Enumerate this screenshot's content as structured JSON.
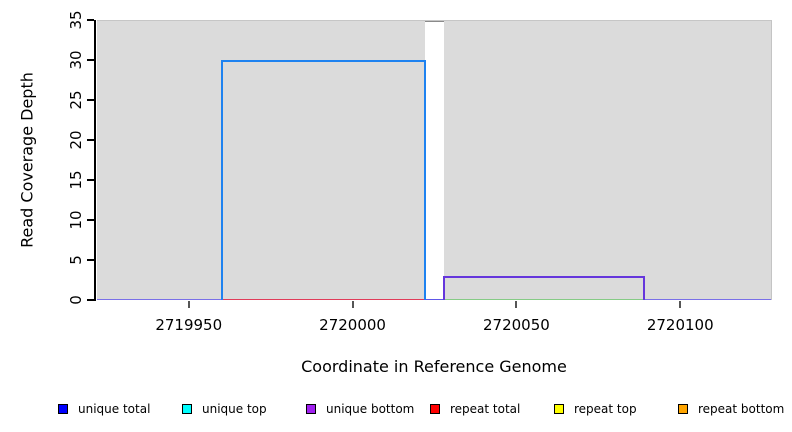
{
  "chart_data": {
    "type": "area",
    "title": "",
    "xlabel": "Coordinate in Reference Genome",
    "ylabel": "Read Coverage Depth",
    "xlim": [
      2719922,
      2720128
    ],
    "ylim": [
      0,
      35
    ],
    "x_ticks": [
      2719950,
      2720000,
      2720050,
      2720100
    ],
    "y_ticks": [
      0,
      5,
      10,
      15,
      20,
      25,
      30,
      35
    ],
    "grid": false,
    "plot_background": "#DBDBDB",
    "gap": {
      "x_start": 2720022,
      "x_end": 2720028,
      "cap_color": "#8A8A8A"
    },
    "steps": [
      {
        "name": "unique total block",
        "x_start": 2719960,
        "x_end": 2720022,
        "depth": 30,
        "line_color": "#1E82F0"
      },
      {
        "name": "unique bottom block",
        "x_start": 2720028,
        "x_end": 2720089,
        "depth": 3,
        "line_color": "#6536DC"
      }
    ],
    "baselines": [
      {
        "x_start": 2719922,
        "x_end": 2719960,
        "depth": 0,
        "line_color": "#7A70E8"
      },
      {
        "x_start": 2719960,
        "x_end": 2720022,
        "depth": 0,
        "line_color": "#E03C5A"
      },
      {
        "x_start": 2720022,
        "x_end": 2720028,
        "depth": 0,
        "line_color": "#6057E8"
      },
      {
        "x_start": 2720028,
        "x_end": 2720089,
        "depth": 0,
        "line_color": "#86CB86"
      },
      {
        "x_start": 2720089,
        "x_end": 2720128,
        "depth": 0,
        "line_color": "#7A70E8"
      }
    ],
    "legend_position": "bottom",
    "legend": [
      {
        "label": "unique total",
        "color": "#0000FF"
      },
      {
        "label": "unique top",
        "color": "#00FFFF"
      },
      {
        "label": "unique bottom",
        "color": "#A020F0"
      },
      {
        "label": "repeat total",
        "color": "#FF0000"
      },
      {
        "label": "repeat top",
        "color": "#FFFF00"
      },
      {
        "label": "repeat bottom",
        "color": "#FFA500"
      }
    ]
  }
}
